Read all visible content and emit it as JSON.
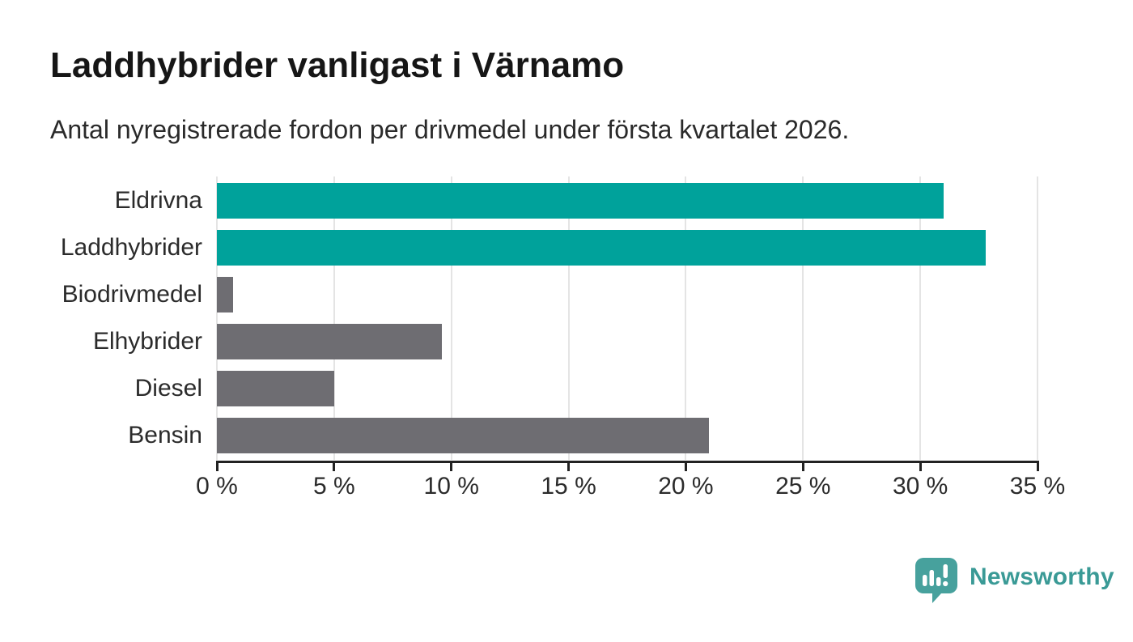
{
  "header": {
    "title": "Laddhybrider vanligast i Värnamo",
    "subtitle": "Antal nyregistrerade fordon per drivmedel under första kvartalet 2026."
  },
  "chart_data": {
    "type": "bar",
    "orientation": "horizontal",
    "title": "Laddhybrider vanligast i Värnamo",
    "subtitle": "Antal nyregistrerade fordon per drivmedel under första kvartalet 2026.",
    "categories": [
      "Eldrivna",
      "Laddhybrider",
      "Biodrivmedel",
      "Elhybrider",
      "Diesel",
      "Bensin"
    ],
    "values": [
      31.0,
      32.8,
      0.7,
      9.6,
      5.0,
      21.0
    ],
    "unit": "%",
    "xlim": [
      0,
      35
    ],
    "x_ticks": [
      0,
      5,
      10,
      15,
      20,
      25,
      30,
      35
    ],
    "x_tick_labels": [
      "0 %",
      "5 %",
      "10 %",
      "15 %",
      "20 %",
      "25 %",
      "30 %",
      "35 %"
    ],
    "grid": true,
    "legend": false,
    "colors": {
      "highlight": "#00a29b",
      "base": "#6e6d72",
      "gridline": "#e4e4e4",
      "axis": "#222222",
      "label_text": "#2b2b2b"
    },
    "bar_colors": [
      "#00a29b",
      "#00a29b",
      "#6e6d72",
      "#6e6d72",
      "#6e6d72",
      "#6e6d72"
    ]
  },
  "footer": {
    "brand_name": "Newsworthy",
    "brand_text_color": "#3a9a96",
    "logo_mark_color": "#47a19d"
  }
}
